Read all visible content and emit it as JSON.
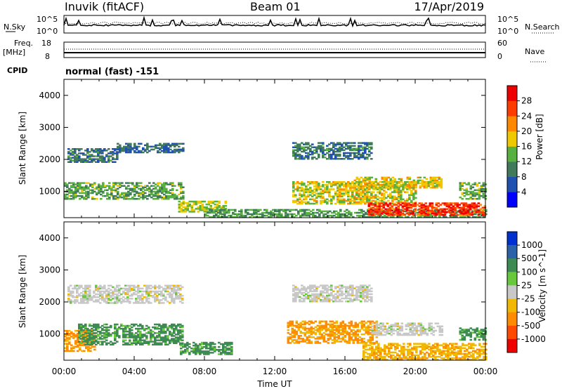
{
  "header": {
    "title": "Inuvik (fitACF)",
    "beam": "Beam 01",
    "date": "17/Apr/2019"
  },
  "strips": {
    "nsky_label": "N.Sky",
    "nsearch_label": "N.Search",
    "nsky_ticks": [
      "10^5",
      "10^0"
    ],
    "nsearch_ticks": [
      "10^5",
      "10^0"
    ],
    "freq_label": "Freq.",
    "freq_unit": "[MHz]",
    "freq_ticks": [
      "18",
      "8"
    ],
    "nave_label": "Nave",
    "nave_ticks": [
      "60",
      "0"
    ],
    "cpid_label": "CPID",
    "cpid_value": "normal (fast) -151"
  },
  "colors": {
    "power_scale": [
      "#0000ff",
      "#2050b0",
      "#407a5a",
      "#58b040",
      "#f0c800",
      "#ff8800",
      "#ff3c00",
      "#ee0000"
    ],
    "velocity_scale": [
      "#0030d0",
      "#2c60a8",
      "#3d8a52",
      "#66c83a",
      "#c8c8c8",
      "#f0b800",
      "#ff8c00",
      "#ff4a00",
      "#ee0000"
    ]
  },
  "chart_data": [
    {
      "type": "heatmap",
      "panel": "power",
      "ylabel": "Slant Range [km]",
      "yticks": [
        "1000",
        "2000",
        "3000",
        "4000"
      ],
      "ylim": [
        180,
        4500
      ],
      "xlim": [
        0,
        24
      ],
      "colorbar_label": "Power [dB]",
      "colorbar_ticks": [
        "4",
        "8",
        "12",
        "16",
        "20",
        "24",
        "28"
      ],
      "colorbar_range": [
        0,
        32
      ],
      "regions": [
        {
          "t0": 0.2,
          "t1": 3.0,
          "r0": 1900,
          "r1": 2350,
          "v": 9
        },
        {
          "t0": 3.0,
          "t1": 6.8,
          "r0": 2200,
          "r1": 2500,
          "v": 8
        },
        {
          "t0": 0.0,
          "t1": 6.8,
          "r0": 750,
          "r1": 1250,
          "v": 13
        },
        {
          "t0": 6.5,
          "t1": 9.2,
          "r0": 350,
          "r1": 700,
          "v": 16
        },
        {
          "t0": 8.0,
          "t1": 24.0,
          "r0": 180,
          "r1": 450,
          "v": 12
        },
        {
          "t0": 13.0,
          "t1": 17.5,
          "r0": 2000,
          "r1": 2500,
          "v": 9
        },
        {
          "t0": 13.0,
          "t1": 20.0,
          "r0": 600,
          "r1": 1300,
          "v": 17
        },
        {
          "t0": 17.3,
          "t1": 24.0,
          "r0": 250,
          "r1": 650,
          "v": 27
        },
        {
          "t0": 16.5,
          "t1": 21.5,
          "r0": 1100,
          "r1": 1450,
          "v": 18
        },
        {
          "t0": 22.5,
          "t1": 24.0,
          "r0": 750,
          "r1": 1250,
          "v": 14
        }
      ]
    },
    {
      "type": "heatmap",
      "panel": "velocity",
      "ylabel": "Slant Range [km]",
      "yticks": [
        "1000",
        "2000",
        "3000",
        "4000"
      ],
      "ylim": [
        180,
        4500
      ],
      "xlim": [
        0,
        24
      ],
      "xlabel": "Time UT",
      "xticks": [
        "00:00",
        "04:00",
        "08:00",
        "12:00",
        "16:00",
        "20:00",
        "00:00"
      ],
      "colorbar_label": "Velocity [m s^-1]",
      "colorbar_ticks": [
        "1000",
        "500",
        "100",
        "25",
        "-25",
        "-100",
        "-500",
        "-1000"
      ],
      "regions": [
        {
          "t0": 0.2,
          "t1": 6.8,
          "r0": 1950,
          "r1": 2500,
          "v": 0
        },
        {
          "t0": 0.0,
          "t1": 1.7,
          "r0": 450,
          "r1": 1100,
          "v": -150
        },
        {
          "t0": 0.8,
          "t1": 6.8,
          "r0": 650,
          "r1": 1300,
          "v": 150
        },
        {
          "t0": 6.6,
          "t1": 9.5,
          "r0": 350,
          "r1": 750,
          "v": 150
        },
        {
          "t0": 13.0,
          "t1": 17.5,
          "r0": 2000,
          "r1": 2500,
          "v": 0
        },
        {
          "t0": 12.7,
          "t1": 17.8,
          "r0": 700,
          "r1": 1400,
          "v": -120
        },
        {
          "t0": 17.0,
          "t1": 24.0,
          "r0": 180,
          "r1": 700,
          "v": -80
        },
        {
          "t0": 17.5,
          "t1": 21.5,
          "r0": 950,
          "r1": 1350,
          "v": 0
        },
        {
          "t0": 22.5,
          "t1": 24.0,
          "r0": 800,
          "r1": 1200,
          "v": 150
        }
      ]
    }
  ]
}
